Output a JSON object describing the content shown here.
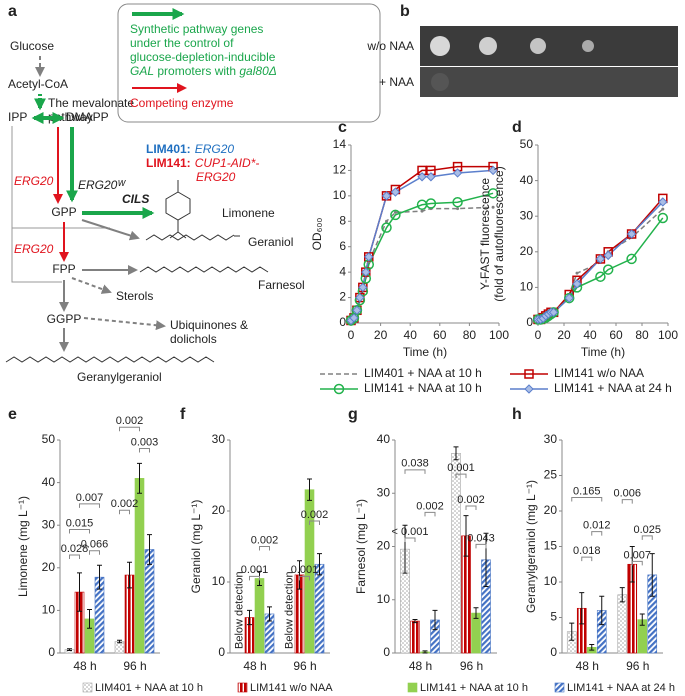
{
  "diagram": {
    "panel": "a",
    "glucose": "Glucose",
    "acetyl_coa": "Acetyl-CoA",
    "mevalonate": [
      "The mevalonate",
      "pathway"
    ],
    "ipp": "IPP",
    "dmapp": "DMAPP",
    "erg20_1": "ERG20",
    "erg20w": "ERG20ᵂ",
    "gpp": "GPP",
    "cils": "CILS",
    "limonene": "Limonene",
    "geraniol": "Geraniol",
    "erg20_2": "ERG20",
    "fpp": "FPP",
    "farnesol": "Farnesol",
    "sterols": "Sterols",
    "ggpp": "GGPP",
    "ubiquinones": [
      "Ubiquinones &",
      "dolichols"
    ],
    "geranylgeraniol": "Geranylgeraniol",
    "key": {
      "synthetic": [
        "Synthetic pathway genes",
        "under the control of",
        "glucose-depletion-inducible"
      ],
      "synthetic_last": [
        "GAL",
        " promoters with ",
        "gal80Δ"
      ],
      "competing": "Competing enzyme"
    },
    "strains": [
      {
        "name": "LIM401:",
        "gene": "ERG20"
      },
      {
        "name": "LIM141:",
        "gene": "CUP1-AID*-",
        "gene2": "ERG20"
      }
    ]
  },
  "plate": {
    "panel": "b",
    "rows": [
      "w/o NAA",
      "+ NAA"
    ]
  },
  "chart_data": [
    {
      "type": "line",
      "panel": "c",
      "ylabel": "OD₆₀₀",
      "xlabel": "Time (h)",
      "x": [
        0,
        2,
        4,
        6,
        8,
        10,
        12,
        24,
        30,
        48,
        54,
        72,
        96
      ],
      "xlim": [
        0,
        100
      ],
      "xticks": [
        0,
        20,
        40,
        60,
        80,
        100
      ],
      "ylim": [
        0,
        14
      ],
      "yticks": [
        0,
        2,
        4,
        6,
        8,
        10,
        12,
        14
      ],
      "series": [
        {
          "name": "LIM401 + NAA at 10 h",
          "color": "#808080",
          "marker": "dot",
          "dashed": true,
          "values": [
            0.2,
            0.4,
            1,
            1.8,
            2.6,
            3.6,
            4.8,
            8,
            8.7,
            8.8,
            9,
            9,
            9.1
          ]
        },
        {
          "name": "LIM141 w/o NAA",
          "color": "#c00000",
          "marker": "square",
          "values": [
            0.2,
            0.4,
            1,
            2,
            2.8,
            4,
            5.2,
            10,
            10.5,
            12,
            12,
            12.3,
            12.3
          ]
        },
        {
          "name": "LIM141 + NAA at 10 h",
          "color": "#22b24c",
          "marker": "circle",
          "values": [
            0.2,
            0.4,
            1,
            1.8,
            2.5,
            3.5,
            4.6,
            7.5,
            8.5,
            9.3,
            9.4,
            9.5,
            10.2
          ]
        },
        {
          "name": "LIM141 + NAA at 24 h",
          "color": "#5b7fcc",
          "marker": "diamond",
          "values": [
            0.2,
            0.4,
            1,
            2,
            2.8,
            4,
            5.2,
            10,
            10.3,
            11.5,
            11.5,
            11.8,
            12
          ]
        }
      ]
    },
    {
      "type": "line",
      "panel": "d",
      "ylabel": [
        "Y-FAST fluorescence",
        "(fold of autofluorescence)"
      ],
      "xlabel": "Time (h)",
      "x": [
        0,
        2,
        4,
        6,
        8,
        10,
        12,
        24,
        30,
        48,
        54,
        72,
        96
      ],
      "xlim": [
        0,
        100
      ],
      "xticks": [
        0,
        20,
        40,
        60,
        80,
        100
      ],
      "ylim": [
        0,
        50
      ],
      "yticks": [
        0,
        10,
        20,
        30,
        40,
        50
      ],
      "series": [
        {
          "color": "#808080",
          "marker": "dot",
          "dashed": true,
          "values": [
            1,
            1,
            1,
            1.5,
            2,
            2,
            2.5,
            8,
            14,
            17,
            20,
            24,
            32
          ]
        },
        {
          "color": "#c00000",
          "marker": "square",
          "values": [
            1,
            1,
            1.5,
            2,
            2.5,
            3,
            3,
            8,
            12,
            18,
            20,
            25,
            35
          ]
        },
        {
          "color": "#22b24c",
          "marker": "circle",
          "values": [
            1,
            1,
            1.2,
            1.5,
            2,
            2.5,
            3,
            7,
            10,
            13,
            15,
            18,
            29.5
          ]
        },
        {
          "color": "#5b7fcc",
          "marker": "diamond",
          "values": [
            1,
            1,
            1.3,
            2,
            2.5,
            3,
            3,
            7,
            11,
            18,
            19,
            25,
            34
          ]
        }
      ]
    },
    {
      "type": "bar",
      "panel": "e",
      "ylabel": "Limonene (mg L⁻¹)",
      "categories": [
        "48 h",
        "96 h"
      ],
      "ylim": [
        0,
        50
      ],
      "yticks": [
        0,
        10,
        20,
        30,
        40,
        50
      ],
      "series": [
        {
          "values": [
            0.8,
            2.7
          ],
          "errors": [
            0.2,
            0.3
          ]
        },
        {
          "values": [
            14.3,
            18.3
          ],
          "errors": [
            4.5,
            3
          ]
        },
        {
          "values": [
            8,
            41
          ],
          "errors": [
            2.2,
            3.5
          ]
        },
        {
          "values": [
            17.8,
            24.3
          ],
          "errors": [
            2.8,
            3.5
          ]
        }
      ],
      "p_values": [
        0.028,
        0.015,
        0.066,
        0.007,
        0.002,
        0.002,
        0.003
      ]
    },
    {
      "type": "bar",
      "panel": "f",
      "ylabel": "Geraniol (mg L⁻¹)",
      "categories": [
        "48 h",
        "96 h"
      ],
      "ylim": [
        0,
        30
      ],
      "yticks": [
        0,
        10,
        20,
        30
      ],
      "series": [
        {
          "values": [
            null,
            null
          ],
          "errors": [
            null,
            null
          ]
        },
        {
          "values": [
            5,
            11
          ],
          "errors": [
            1,
            2
          ]
        },
        {
          "values": [
            10.5,
            23
          ],
          "errors": [
            1,
            1.5
          ]
        },
        {
          "values": [
            5.5,
            12.5
          ],
          "errors": [
            1,
            1.5
          ]
        }
      ],
      "annotations": [
        "Below detection",
        "Below detection"
      ],
      "p_values": [
        0.001,
        0.002,
        0.001,
        0.002
      ]
    },
    {
      "type": "bar",
      "panel": "g",
      "ylabel": "Farnesol (mg L⁻¹)",
      "categories": [
        "48 h",
        "96 h"
      ],
      "ylim": [
        0,
        40
      ],
      "yticks": [
        0,
        10,
        20,
        30,
        40
      ],
      "series": [
        {
          "values": [
            19.5,
            37.5
          ],
          "errors": [
            4.5,
            1.2
          ]
        },
        {
          "values": [
            6,
            22
          ],
          "errors": [
            0.3,
            3.8
          ]
        },
        {
          "values": [
            0.2,
            7.5
          ],
          "errors": [
            0.2,
            1
          ]
        },
        {
          "values": [
            6.2,
            17.5
          ],
          "errors": [
            1.8,
            5
          ]
        }
      ],
      "p_values": [
        0.038,
        0.002,
        "< 0.001",
        0.001,
        0.002,
        0.043
      ]
    },
    {
      "type": "bar",
      "panel": "h",
      "ylabel": "Geranylgeraniol (mg L⁻¹)",
      "categories": [
        "48 h",
        "96 h"
      ],
      "ylim": [
        0,
        30
      ],
      "yticks": [
        0,
        5,
        10,
        15,
        20,
        25,
        30
      ],
      "series": [
        {
          "values": [
            3,
            8.2
          ],
          "errors": [
            1.2,
            1
          ]
        },
        {
          "values": [
            6.3,
            12.5
          ],
          "errors": [
            2.2,
            2.5
          ]
        },
        {
          "values": [
            0.8,
            4.7
          ],
          "errors": [
            0.4,
            0.8
          ]
        },
        {
          "values": [
            6,
            11
          ],
          "errors": [
            2,
            3
          ]
        }
      ],
      "p_values": [
        0.165,
        0.012,
        0.018,
        0.006,
        0.025,
        0.007
      ]
    }
  ],
  "bar_legend": [
    {
      "name": "LIM401 + NAA at 10 h",
      "color": "#a6a6a6"
    },
    {
      "name": "LIM141 w/o NAA",
      "color": "#c00000"
    },
    {
      "name": "LIM141 + NAA at 10 h",
      "color": "#92d050"
    },
    {
      "name": "LIM141 + NAA at 24 h",
      "color": "#4472c4"
    }
  ]
}
